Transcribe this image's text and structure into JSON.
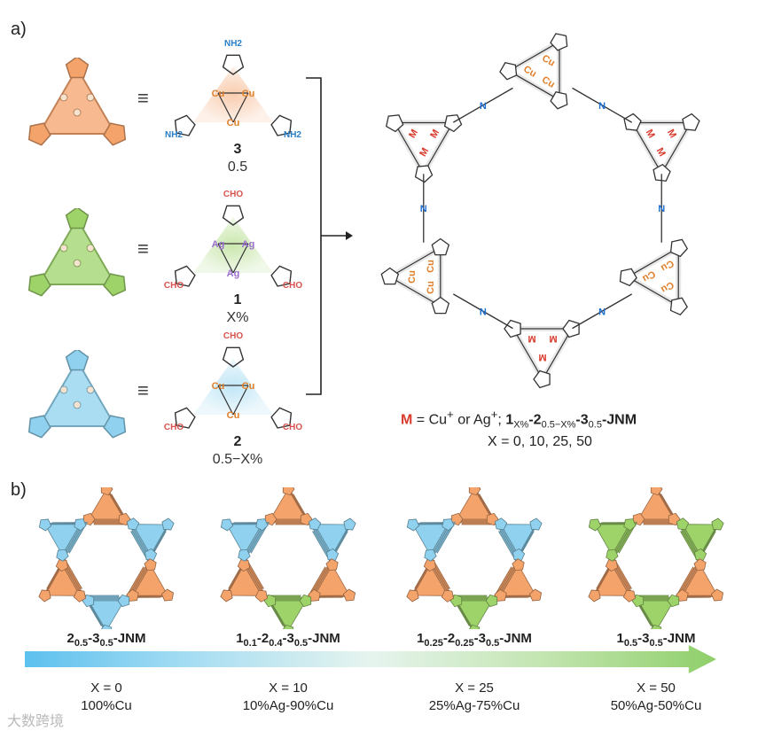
{
  "panels": {
    "a": "a)",
    "b": "b)"
  },
  "colors": {
    "orange": "#f4a36b",
    "green": "#9ed36a",
    "blue": "#8fd1ee",
    "cu": "#e07f2a",
    "ag": "#9b6fcf",
    "n": "#1f6fd1",
    "nh2": "#2a7fc8",
    "cho": "#d9534f",
    "m": "#d93a2b",
    "bond": "#333333"
  },
  "equiv_symbol": "≡",
  "units": [
    {
      "id": "3",
      "number": "3",
      "ratio": "0.5",
      "metal": "Cu",
      "group": "NH2",
      "color": "orange"
    },
    {
      "id": "1",
      "number": "1",
      "ratio": "X%",
      "metal": "Ag",
      "group": "CHO",
      "color": "green"
    },
    {
      "id": "2",
      "number": "2",
      "ratio": "0.5−X%",
      "metal": "Cu",
      "group": "CHO",
      "color": "blue"
    }
  ],
  "atom_labels": {
    "n": "N",
    "m": "M",
    "cu": "Cu",
    "nh2": "NH2"
  },
  "legend": {
    "m": "M",
    "eq": " = Cu",
    "plus1": "+",
    "or": " or Ag",
    "plus2": "+",
    "semi": "; ",
    "n1": "1",
    "sub1": "X%",
    "dash1": "-",
    "n2": "2",
    "sub2": "0.5−X%",
    "dash2": "-",
    "n3": "3",
    "sub3": "0.5",
    "suffix": "-JNM",
    "xline": "X = 0, 10, 25, 50"
  },
  "networks": [
    {
      "label_parts": [
        [
          "2",
          "0.5"
        ],
        [
          "3",
          "0.5"
        ]
      ],
      "suffix": "-JNM",
      "x": "X = 0",
      "composition": "100%Cu",
      "pattern": [
        "orange",
        "blue",
        "orange",
        "blue",
        "orange",
        "blue"
      ]
    },
    {
      "label_parts": [
        [
          "1",
          "0.1"
        ],
        [
          "2",
          "0.4"
        ],
        [
          "3",
          "0.5"
        ]
      ],
      "suffix": "-JNM",
      "x": "X = 10",
      "composition": "10%Ag-90%Cu",
      "pattern": [
        "orange",
        "blue",
        "orange",
        "green",
        "orange",
        "blue"
      ]
    },
    {
      "label_parts": [
        [
          "1",
          "0.25"
        ],
        [
          "2",
          "0.25"
        ],
        [
          "3",
          "0.5"
        ]
      ],
      "suffix": "-JNM",
      "x": "X = 25",
      "composition": "25%Ag-75%Cu",
      "pattern": [
        "orange",
        "blue",
        "orange",
        "green",
        "orange",
        "blue"
      ]
    },
    {
      "label_parts": [
        [
          "1",
          "0.5"
        ],
        [
          "3",
          "0.5"
        ]
      ],
      "suffix": "-JNM",
      "x": "X = 50",
      "composition": "50%Ag-50%Cu",
      "pattern": [
        "orange",
        "green",
        "orange",
        "green",
        "orange",
        "green"
      ]
    }
  ],
  "watermark": "大数跨境"
}
